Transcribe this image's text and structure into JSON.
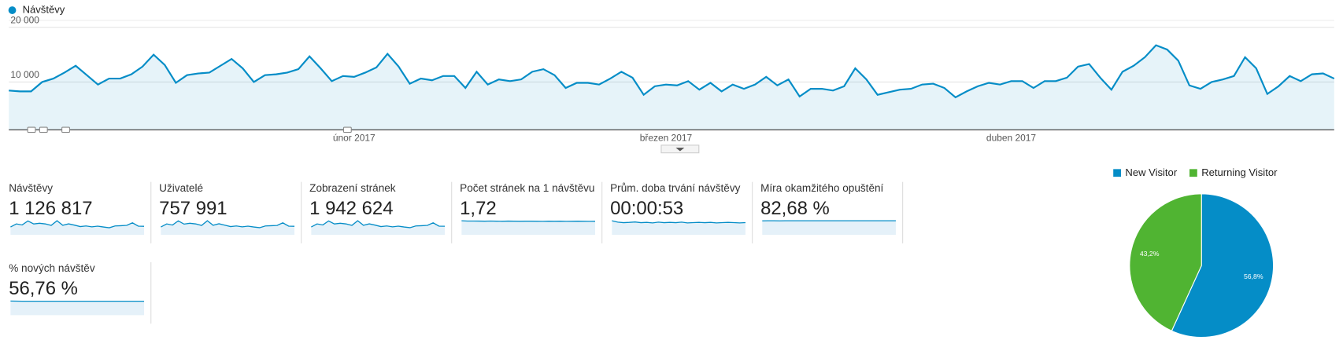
{
  "chart_data": [
    {
      "type": "line",
      "categories": [
        null,
        null,
        null,
        null,
        null,
        null,
        null,
        null,
        null,
        null,
        null,
        null,
        null,
        null,
        null,
        null,
        null,
        null,
        null,
        null,
        null,
        null,
        null,
        null,
        null,
        null,
        null,
        null,
        null,
        null,
        null,
        "únor 2017",
        null,
        null,
        null,
        null,
        null,
        null,
        null,
        null,
        null,
        null,
        null,
        null,
        null,
        null,
        null,
        null,
        null,
        null,
        null,
        null,
        null,
        null,
        null,
        null,
        null,
        null,
        null,
        "březen 2017",
        null,
        null,
        null,
        null,
        null,
        null,
        null,
        null,
        null,
        null,
        null,
        null,
        null,
        null,
        null,
        null,
        null,
        null,
        null,
        null,
        null,
        null,
        null,
        null,
        null,
        null,
        null,
        null,
        null,
        null,
        "duben 2017",
        null,
        null,
        null,
        null,
        null,
        null,
        null,
        null,
        null,
        null,
        null,
        null,
        null,
        null,
        null,
        null,
        null,
        null,
        null,
        null,
        null,
        null,
        null,
        null,
        null,
        null,
        null,
        null,
        null
      ],
      "series": [
        {
          "name": "Návštěvy",
          "color": "#058dc7",
          "values": [
            8440,
            8280,
            8280,
            10000,
            10630,
            11720,
            12970,
            11250,
            9530,
            10630,
            10630,
            11410,
            12810,
            15000,
            13130,
            9840,
            11250,
            11560,
            11720,
            12970,
            14220,
            12500,
            10000,
            11250,
            11410,
            11720,
            12340,
            14690,
            12500,
            10160,
            11090,
            10940,
            11720,
            12660,
            15160,
            12810,
            9690,
            10630,
            10310,
            11090,
            11090,
            8910,
            11880,
            9530,
            10470,
            10160,
            10470,
            11880,
            12340,
            11250,
            8910,
            9840,
            9840,
            9530,
            10630,
            11880,
            10780,
            7660,
            9220,
            9530,
            9380,
            10160,
            8590,
            9840,
            8280,
            9530,
            8750,
            9530,
            10940,
            9380,
            10470,
            7340,
            8750,
            8750,
            8440,
            9220,
            12500,
            10470,
            7660,
            8130,
            8590,
            8750,
            9530,
            9690,
            8910,
            7190,
            8280,
            9220,
            9840,
            9530,
            10160,
            10160,
            8910,
            10160,
            10160,
            10780,
            12810,
            13280,
            10780,
            8590,
            11880,
            12970,
            14530,
            16720,
            15940,
            13910,
            9380,
            8750,
            10000,
            10470,
            11090,
            14530,
            12500,
            7810,
            9220,
            11090,
            10160,
            11410,
            11560,
            10630
          ]
        }
      ],
      "ylim": [
        1250,
        21250
      ],
      "yticks": [
        {
          "value": 10000,
          "label": "10 000"
        },
        {
          "value": 20000,
          "label": "20 000"
        }
      ],
      "grid": true
    },
    {
      "type": "pie",
      "categories": [
        "New Visitor",
        "Returning Visitor"
      ],
      "values": [
        56.8,
        43.2
      ],
      "value_labels": [
        "56,8%",
        "43,2%"
      ],
      "colors": [
        "#058dc7",
        "#50b432"
      ]
    }
  ],
  "metrics": [
    {
      "label": "Návštěvy",
      "value": "1 126 817",
      "spark": [
        8440,
        11720,
        10630,
        15000,
        11720,
        12500,
        11720,
        10160,
        15160,
        10310,
        11880,
        10470,
        8910,
        9530,
        8590,
        9380,
        8440,
        7660,
        9530,
        9840,
        10160,
        12970,
        9380,
        9220
      ]
    },
    {
      "label": "Uživatelé",
      "value": "757 991",
      "spark": [
        5700,
        7900,
        7100,
        10100,
        7800,
        8400,
        7900,
        6800,
        10200,
        6900,
        8000,
        7000,
        6000,
        6400,
        5800,
        6300,
        5700,
        5200,
        6400,
        6600,
        6800,
        8700,
        6300,
        6200
      ]
    },
    {
      "label": "Zobrazení stránek",
      "value": "1 942 624",
      "spark": [
        14500,
        20200,
        18300,
        25800,
        20200,
        21500,
        20200,
        17500,
        26100,
        17700,
        20400,
        18000,
        15300,
        16400,
        14800,
        16100,
        14500,
        13200,
        16400,
        16900,
        17500,
        22300,
        16100,
        15900
      ]
    },
    {
      "label": "Počet stránek na 1 návštěvu",
      "value": "1,72",
      "spark": [
        1.78,
        1.75,
        1.74,
        1.73,
        1.72,
        1.74,
        1.72,
        1.71,
        1.73,
        1.72,
        1.71,
        1.72,
        1.72,
        1.71,
        1.7,
        1.72,
        1.71,
        1.72,
        1.7,
        1.71,
        1.72,
        1.71,
        1.7,
        1.71
      ]
    },
    {
      "label": "Prům. doba trvání návštěvy",
      "value": "00:00:53",
      "spark": [
        60,
        54,
        52,
        53,
        55,
        52,
        53,
        51,
        54,
        52,
        53,
        52,
        54,
        51,
        52,
        53,
        52,
        53,
        51,
        52,
        53,
        52,
        51,
        52
      ]
    },
    {
      "label": "Míra okamžitého opuštění",
      "value": "82,68 %",
      "spark": [
        82.3,
        82.6,
        82.7,
        82.5,
        82.8,
        82.7,
        82.6,
        82.9,
        82.7,
        82.6,
        82.8,
        82.7,
        82.6,
        82.8,
        82.7,
        82.6,
        82.9,
        82.7,
        82.8,
        82.6,
        82.7,
        82.8,
        82.7,
        82.6
      ]
    },
    {
      "label": "% nových návštěv",
      "value": "56,76 %",
      "spark": [
        57.5,
        57.0,
        56.9,
        56.7,
        56.8,
        56.6,
        56.9,
        56.7,
        56.8,
        56.6,
        56.7,
        56.9,
        56.8,
        56.7,
        56.6,
        56.8,
        56.7,
        56.9,
        56.6,
        56.8,
        56.7,
        56.8,
        56.6,
        56.7
      ]
    }
  ]
}
